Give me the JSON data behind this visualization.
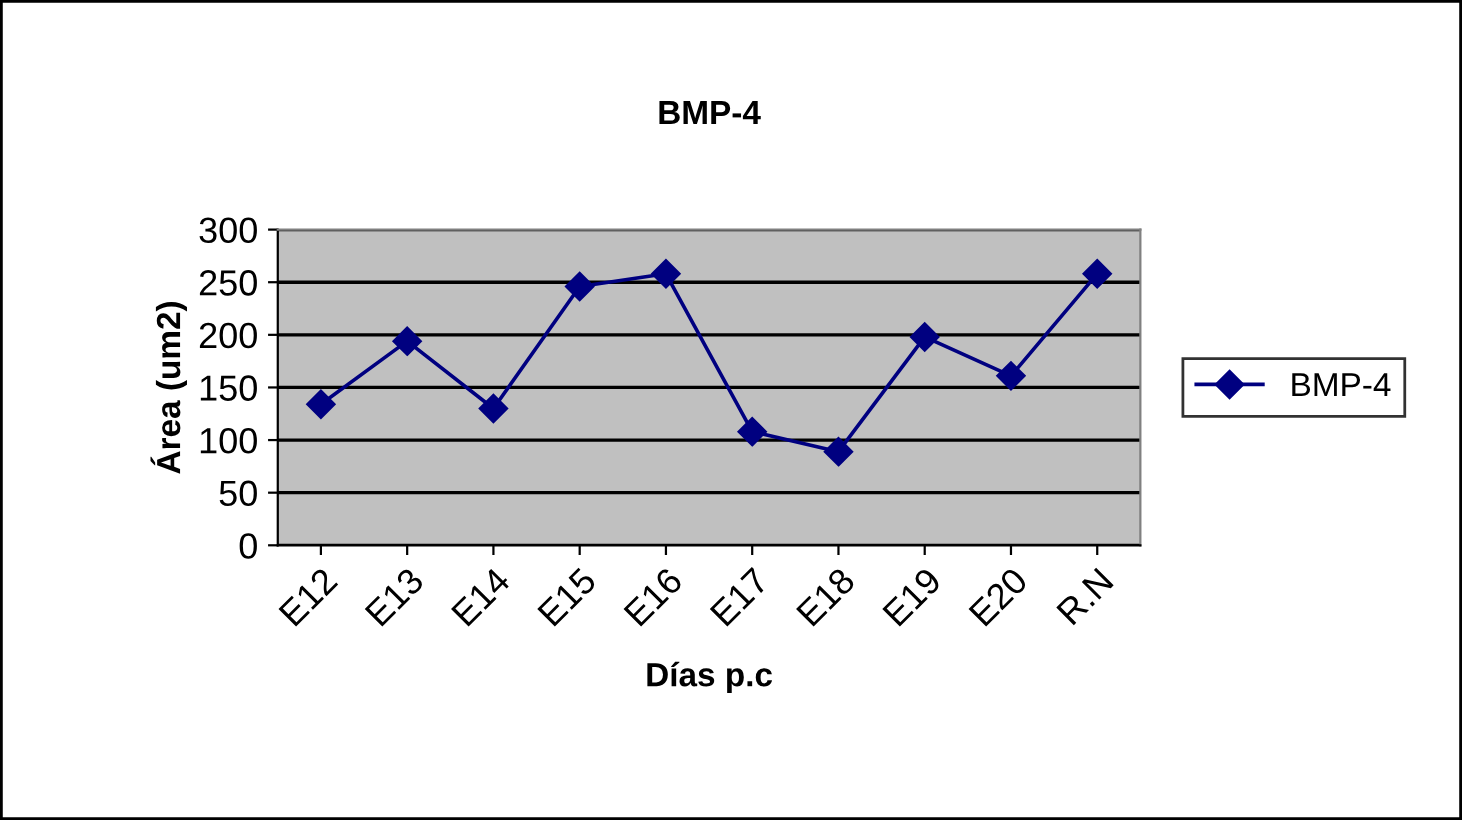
{
  "chart_data": {
    "type": "line",
    "title": "BMP-4",
    "xlabel": "Días p.c",
    "ylabel": "Área (um2)",
    "categories": [
      "E12",
      "E13",
      "E14",
      "E15",
      "E16",
      "E17",
      "E18",
      "E19",
      "E20",
      "R.N"
    ],
    "series": [
      {
        "name": "BMP-4",
        "color": "#000080",
        "values": [
          134,
          194,
          130,
          246,
          258,
          108,
          89,
          198,
          161,
          258
        ]
      }
    ],
    "ylim": [
      0,
      300
    ],
    "yticks": [
      0,
      50,
      100,
      150,
      200,
      250,
      300
    ],
    "grid": "y",
    "legend": "right",
    "marker": "diamond",
    "line_style": "solid"
  }
}
